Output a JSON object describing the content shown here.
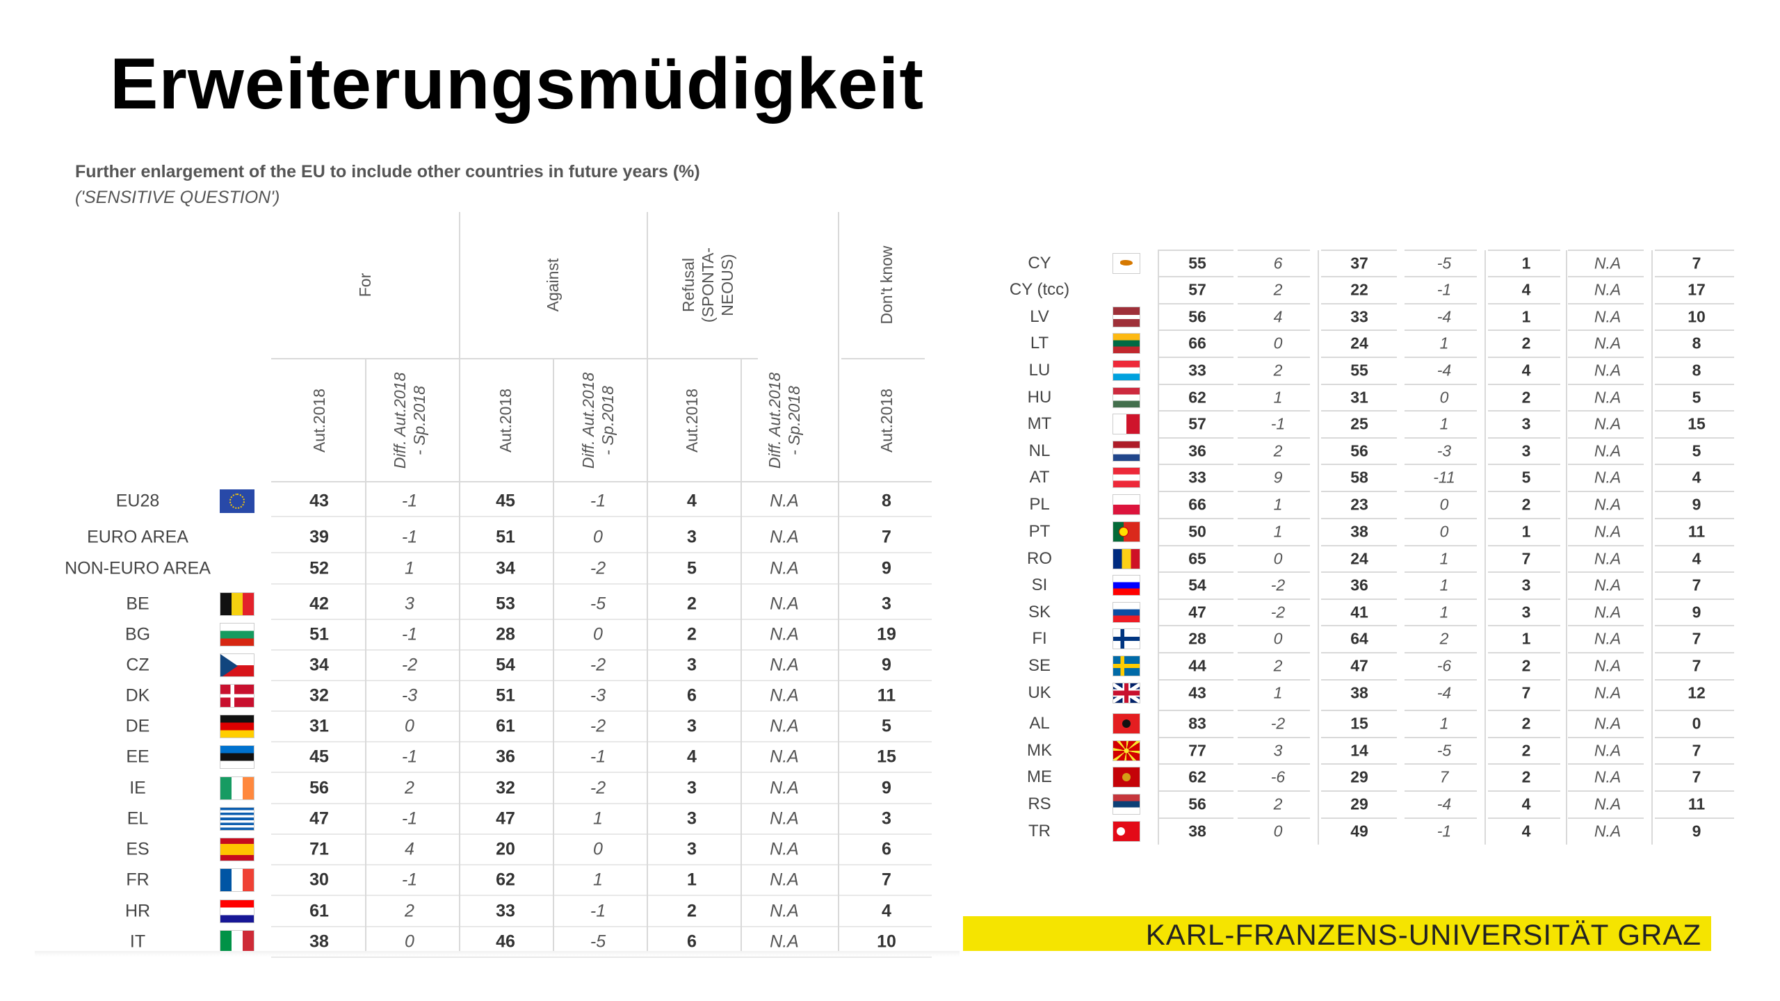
{
  "title": "Erweiterungsmüdigkeit",
  "caption": "Further enlargement of the EU to include other countries in future years (%)",
  "subcaption": "('SENSITIVE QUESTION')",
  "group_headers": [
    "For",
    "Against",
    "Refusal (SPONTA-NEOUS)",
    "Don't know"
  ],
  "refusal_lines": [
    "Refusal",
    "(SPONTA-",
    "NEOUS)"
  ],
  "col_headers": {
    "aut": "Aut.2018",
    "diff_l1": "Diff. Aut.2018",
    "diff_l2": "- Sp.2018"
  },
  "left_rows": [
    {
      "label": "EU28",
      "flag": "eu",
      "v": [
        "43",
        "-1",
        "45",
        "-1",
        "4",
        "N.A",
        "8"
      ]
    },
    {
      "label": "EURO AREA",
      "flag": "",
      "v": [
        "39",
        "-1",
        "51",
        "0",
        "3",
        "N.A",
        "7"
      ]
    },
    {
      "label": "NON-EURO AREA",
      "flag": "",
      "v": [
        "52",
        "1",
        "34",
        "-2",
        "5",
        "N.A",
        "9"
      ]
    },
    {
      "label": "BE",
      "flag": "be",
      "v": [
        "42",
        "3",
        "53",
        "-5",
        "2",
        "N.A",
        "3"
      ]
    },
    {
      "label": "BG",
      "flag": "bg",
      "v": [
        "51",
        "-1",
        "28",
        "0",
        "2",
        "N.A",
        "19"
      ]
    },
    {
      "label": "CZ",
      "flag": "cz",
      "v": [
        "34",
        "-2",
        "54",
        "-2",
        "3",
        "N.A",
        "9"
      ]
    },
    {
      "label": "DK",
      "flag": "dk",
      "v": [
        "32",
        "-3",
        "51",
        "-3",
        "6",
        "N.A",
        "11"
      ]
    },
    {
      "label": "DE",
      "flag": "de",
      "v": [
        "31",
        "0",
        "61",
        "-2",
        "3",
        "N.A",
        "5"
      ]
    },
    {
      "label": "EE",
      "flag": "ee",
      "v": [
        "45",
        "-1",
        "36",
        "-1",
        "4",
        "N.A",
        "15"
      ]
    },
    {
      "label": "IE",
      "flag": "ie",
      "v": [
        "56",
        "2",
        "32",
        "-2",
        "3",
        "N.A",
        "9"
      ]
    },
    {
      "label": "EL",
      "flag": "el",
      "v": [
        "47",
        "-1",
        "47",
        "1",
        "3",
        "N.A",
        "3"
      ]
    },
    {
      "label": "ES",
      "flag": "es",
      "v": [
        "71",
        "4",
        "20",
        "0",
        "3",
        "N.A",
        "6"
      ]
    },
    {
      "label": "FR",
      "flag": "fr",
      "v": [
        "30",
        "-1",
        "62",
        "1",
        "1",
        "N.A",
        "7"
      ]
    },
    {
      "label": "HR",
      "flag": "hr",
      "v": [
        "61",
        "2",
        "33",
        "-1",
        "2",
        "N.A",
        "4"
      ]
    },
    {
      "label": "IT",
      "flag": "it",
      "v": [
        "38",
        "0",
        "46",
        "-5",
        "6",
        "N.A",
        "10"
      ]
    }
  ],
  "right_rows": [
    {
      "label": "CY",
      "flag": "cy",
      "v": [
        "55",
        "6",
        "37",
        "-5",
        "1",
        "N.A",
        "7"
      ]
    },
    {
      "label": "CY (tcc)",
      "flag": "",
      "v": [
        "57",
        "2",
        "22",
        "-1",
        "4",
        "N.A",
        "17"
      ]
    },
    {
      "label": "LV",
      "flag": "lv",
      "v": [
        "56",
        "4",
        "33",
        "-4",
        "1",
        "N.A",
        "10"
      ]
    },
    {
      "label": "LT",
      "flag": "lt",
      "v": [
        "66",
        "0",
        "24",
        "1",
        "2",
        "N.A",
        "8"
      ]
    },
    {
      "label": "LU",
      "flag": "lu",
      "v": [
        "33",
        "2",
        "55",
        "-4",
        "4",
        "N.A",
        "8"
      ]
    },
    {
      "label": "HU",
      "flag": "hu",
      "v": [
        "62",
        "1",
        "31",
        "0",
        "2",
        "N.A",
        "5"
      ]
    },
    {
      "label": "MT",
      "flag": "mt",
      "v": [
        "57",
        "-1",
        "25",
        "1",
        "3",
        "N.A",
        "15"
      ]
    },
    {
      "label": "NL",
      "flag": "nl",
      "v": [
        "36",
        "2",
        "56",
        "-3",
        "3",
        "N.A",
        "5"
      ]
    },
    {
      "label": "AT",
      "flag": "at",
      "v": [
        "33",
        "9",
        "58",
        "-11",
        "5",
        "N.A",
        "4"
      ]
    },
    {
      "label": "PL",
      "flag": "pl",
      "v": [
        "66",
        "1",
        "23",
        "0",
        "2",
        "N.A",
        "9"
      ]
    },
    {
      "label": "PT",
      "flag": "pt",
      "v": [
        "50",
        "1",
        "38",
        "0",
        "1",
        "N.A",
        "11"
      ]
    },
    {
      "label": "RO",
      "flag": "ro",
      "v": [
        "65",
        "0",
        "24",
        "1",
        "7",
        "N.A",
        "4"
      ]
    },
    {
      "label": "SI",
      "flag": "si",
      "v": [
        "54",
        "-2",
        "36",
        "1",
        "3",
        "N.A",
        "7"
      ]
    },
    {
      "label": "SK",
      "flag": "sk",
      "v": [
        "47",
        "-2",
        "41",
        "1",
        "3",
        "N.A",
        "9"
      ]
    },
    {
      "label": "FI",
      "flag": "fi",
      "v": [
        "28",
        "0",
        "64",
        "2",
        "1",
        "N.A",
        "7"
      ]
    },
    {
      "label": "SE",
      "flag": "se",
      "v": [
        "44",
        "2",
        "47",
        "-6",
        "2",
        "N.A",
        "7"
      ]
    },
    {
      "label": "UK",
      "flag": "uk",
      "v": [
        "43",
        "1",
        "38",
        "-4",
        "7",
        "N.A",
        "12"
      ]
    },
    {
      "label": "AL",
      "flag": "al",
      "v": [
        "83",
        "-2",
        "15",
        "1",
        "2",
        "N.A",
        "0"
      ]
    },
    {
      "label": "MK",
      "flag": "mk",
      "v": [
        "77",
        "3",
        "14",
        "-5",
        "2",
        "N.A",
        "7"
      ]
    },
    {
      "label": "ME",
      "flag": "me",
      "v": [
        "62",
        "-6",
        "29",
        "7",
        "2",
        "N.A",
        "7"
      ]
    },
    {
      "label": "RS",
      "flag": "rs",
      "v": [
        "56",
        "2",
        "29",
        "-4",
        "4",
        "N.A",
        "11"
      ]
    },
    {
      "label": "TR",
      "flag": "tr",
      "v": [
        "38",
        "0",
        "49",
        "-1",
        "4",
        "N.A",
        "9"
      ]
    }
  ],
  "banner": "KARL-FRANZENS-UNIVERSITÄT GRAZ",
  "colors": {
    "banner": "#f5e400",
    "grid": "#d9d9d9"
  }
}
